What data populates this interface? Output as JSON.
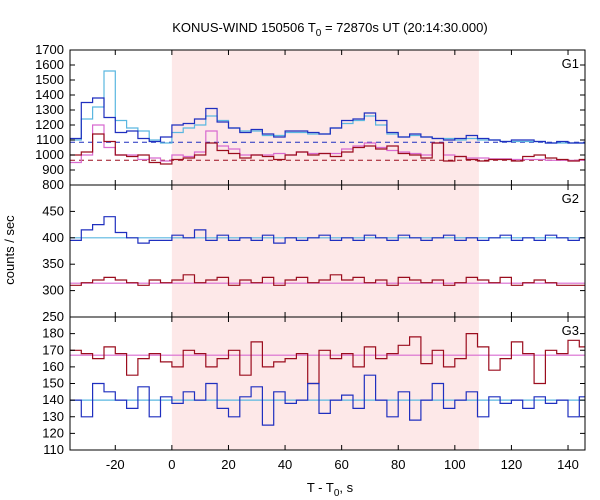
{
  "chart_data": {
    "type": "line",
    "title": "KONUS-WIND 150506 T",
    "title_sub": "0",
    "title_rest": " = 72870s UT (20:14:30.000)",
    "xlabel": "T - T",
    "xlabel_sub": "0",
    "xlabel_rest": ", s",
    "ylabel": "counts / sec",
    "xlim": [
      -36,
      146
    ],
    "xticks": [
      -20,
      0,
      20,
      40,
      60,
      80,
      100,
      120,
      140
    ],
    "highlight_interval": [
      0,
      108.5
    ],
    "colors": {
      "highlight": "#fde8e8",
      "blue": "#1f2fbf",
      "red": "#9b0d1e",
      "lightblue": "#5ab7e0",
      "pink": "#d86ad0"
    },
    "bin_edges": [
      -36,
      -32,
      -28,
      -24,
      -20,
      -16,
      -12,
      -8,
      -4,
      0,
      4,
      8,
      12,
      16,
      20,
      24,
      28,
      32,
      36,
      40,
      44,
      48,
      52,
      56,
      60,
      64,
      68,
      72,
      76,
      80,
      84,
      88,
      92,
      96,
      100,
      104,
      108,
      112,
      116,
      120,
      124,
      128,
      132,
      136,
      140,
      144,
      146
    ],
    "panels": [
      {
        "label": "G1",
        "ylim": [
          800,
          1700
        ],
        "yticks": [
          800,
          900,
          1000,
          1100,
          1200,
          1300,
          1400,
          1500,
          1600,
          1700
        ],
        "baselines": [
          {
            "value": 1085,
            "style": "dashed",
            "color": "blue"
          },
          {
            "value": 965,
            "style": "dashed",
            "color": "red"
          }
        ],
        "series": [
          {
            "color": "lightblue",
            "values": [
              1100,
              1240,
              1320,
              1560,
              1230,
              1180,
              1160,
              1100,
              1080,
              1150,
              1180,
              1200,
              1260,
              1230,
              1180,
              1160,
              1160,
              1130,
              1130,
              1150,
              1150,
              1140,
              1140,
              1180,
              1210,
              1230,
              1260,
              1200,
              1140,
              1120,
              1130,
              1120,
              1110,
              1110,
              1100,
              1110,
              1100,
              1100,
              1090,
              1090,
              1090,
              1090,
              1080,
              1080,
              1080,
              1080
            ]
          },
          {
            "color": "blue",
            "values": [
              1110,
              1350,
              1380,
              1250,
              1150,
              1160,
              1110,
              1090,
              1120,
              1200,
              1210,
              1240,
              1310,
              1220,
              1180,
              1150,
              1170,
              1140,
              1120,
              1160,
              1160,
              1150,
              1140,
              1180,
              1230,
              1240,
              1280,
              1230,
              1150,
              1120,
              1140,
              1120,
              1110,
              1100,
              1110,
              1130,
              1110,
              1100,
              1090,
              1100,
              1100,
              1090,
              1080,
              1090,
              1080,
              1080
            ]
          },
          {
            "color": "pink",
            "values": [
              950,
              1000,
              1200,
              1050,
              1000,
              1000,
              970,
              980,
              960,
              1000,
              990,
              1020,
              1160,
              1060,
              1040,
              1000,
              1000,
              1000,
              1010,
              1000,
              1020,
              1010,
              1010,
              1010,
              1040,
              1060,
              1080,
              1050,
              1030,
              1020,
              1010,
              1000,
              1080,
              1000,
              990,
              980,
              980,
              975,
              975,
              970,
              970,
              970,
              965,
              965,
              965,
              965
            ]
          },
          {
            "color": "red",
            "values": [
              1000,
              1020,
              1140,
              1090,
              1000,
              990,
              1000,
              950,
              940,
              970,
              980,
              1000,
              1080,
              1030,
              1010,
              980,
              1000,
              990,
              970,
              1000,
              1020,
              1000,
              1010,
              990,
              1020,
              1050,
              1060,
              1040,
              1060,
              1010,
              1000,
              980,
              1080,
              960,
              990,
              970,
              960,
              970,
              970,
              960,
              990,
              1000,
              980,
              970,
              960,
              970
            ]
          }
        ]
      },
      {
        "label": "G2",
        "ylim": [
          250,
          500
        ],
        "yticks": [
          250,
          300,
          350,
          400,
          450
        ],
        "baselines": [],
        "series": [
          {
            "color": "lightblue",
            "values": [
              400,
              400,
              400,
              400,
              400,
              400,
              400,
              400,
              400,
              400,
              400,
              400,
              400,
              400,
              400,
              400,
              400,
              400,
              400,
              400,
              400,
              400,
              400,
              400,
              400,
              400,
              400,
              400,
              400,
              400,
              400,
              400,
              400,
              400,
              400,
              400,
              400,
              400,
              400,
              400,
              400,
              400,
              400,
              400,
              400,
              400
            ]
          },
          {
            "color": "pink",
            "values": [
              314,
              314,
              314,
              314,
              314,
              314,
              314,
              314,
              314,
              314,
              314,
              314,
              314,
              314,
              314,
              314,
              314,
              314,
              314,
              314,
              314,
              314,
              314,
              314,
              314,
              314,
              314,
              314,
              314,
              314,
              314,
              314,
              314,
              314,
              314,
              314,
              314,
              314,
              314,
              314,
              314,
              314,
              314,
              314,
              314,
              314
            ]
          },
          {
            "color": "blue",
            "values": [
              395,
              415,
              425,
              440,
              410,
              400,
              390,
              395,
              395,
              405,
              400,
              415,
              395,
              405,
              395,
              400,
              395,
              405,
              390,
              400,
              395,
              400,
              405,
              395,
              400,
              395,
              405,
              400,
              395,
              405,
              400,
              395,
              400,
              405,
              395,
              400,
              395,
              400,
              405,
              395,
              400,
              395,
              405,
              400,
              395,
              400
            ]
          },
          {
            "color": "red",
            "values": [
              310,
              315,
              320,
              325,
              320,
              315,
              310,
              320,
              315,
              320,
              330,
              315,
              320,
              325,
              310,
              320,
              315,
              325,
              310,
              320,
              325,
              315,
              320,
              330,
              320,
              325,
              315,
              320,
              310,
              325,
              320,
              315,
              320,
              310,
              315,
              325,
              320,
              315,
              325,
              310,
              315,
              320,
              315,
              310,
              310,
              310
            ]
          }
        ]
      },
      {
        "label": "G3",
        "ylim": [
          110,
          190
        ],
        "yticks": [
          110,
          120,
          130,
          140,
          150,
          160,
          170,
          180
        ],
        "baselines": [],
        "series": [
          {
            "color": "pink",
            "values": [
              167,
              167,
              167,
              167,
              167,
              167,
              167,
              167,
              167,
              167,
              167,
              167,
              167,
              167,
              167,
              167,
              167,
              167,
              167,
              167,
              167,
              167,
              167,
              167,
              167,
              167,
              167,
              167,
              167,
              167,
              167,
              167,
              167,
              167,
              167,
              167,
              167,
              167,
              167,
              167,
              167,
              167,
              167,
              167,
              167,
              167
            ]
          },
          {
            "color": "lightblue",
            "values": [
              140,
              140,
              140,
              140,
              140,
              140,
              140,
              140,
              140,
              140,
              140,
              140,
              140,
              140,
              140,
              140,
              140,
              140,
              140,
              140,
              140,
              140,
              140,
              140,
              140,
              140,
              140,
              140,
              140,
              140,
              140,
              140,
              140,
              140,
              140,
              140,
              140,
              140,
              140,
              140,
              140,
              140,
              140,
              140,
              140,
              140
            ]
          },
          {
            "color": "red",
            "values": [
              170,
              168,
              165,
              172,
              168,
              155,
              165,
              168,
              163,
              160,
              170,
              168,
              160,
              165,
              170,
              155,
              175,
              160,
              163,
              165,
              168,
              150,
              170,
              165,
              168,
              160,
              172,
              165,
              168,
              173,
              178,
              162,
              170,
              160,
              165,
              180,
              172,
              158,
              165,
              175,
              168,
              150,
              170,
              168,
              176,
              172
            ]
          },
          {
            "color": "blue",
            "values": [
              140,
              130,
              150,
              145,
              140,
              135,
              148,
              130,
              142,
              138,
              145,
              140,
              150,
              135,
              130,
              142,
              148,
              125,
              145,
              138,
              140,
              150,
              132,
              140,
              143,
              135,
              155,
              140,
              130,
              145,
              128,
              140,
              150,
              135,
              140,
              145,
              130,
              142,
              138,
              140,
              135,
              142,
              138,
              140,
              130,
              142
            ]
          }
        ]
      }
    ]
  }
}
